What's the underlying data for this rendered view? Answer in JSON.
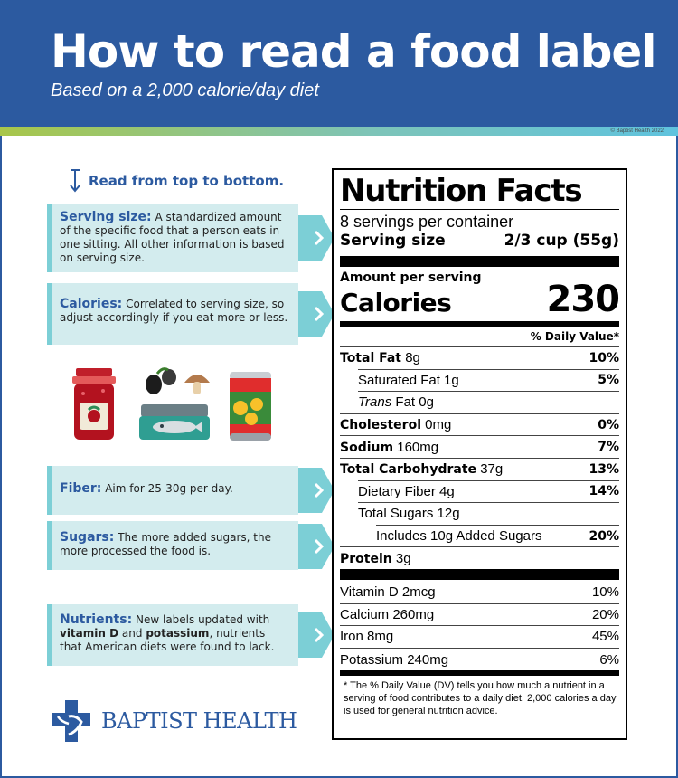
{
  "header": {
    "title": "How to read a food label",
    "subtitle": "Based on a 2,000 calorie/day diet",
    "copyright": "© Baptist Health 2022",
    "background_color": "#2c5aa0"
  },
  "guide": {
    "read_hint": "Read from top to bottom.",
    "serving": {
      "heading": "Serving size:",
      "text": "A standardized amount of the specific food that a person eats in one sitting. All other information is based on serving size."
    },
    "calories": {
      "heading": "Calories:",
      "text": "Correlated to serving size, so adjust accordingly if you eat more or less."
    },
    "fiber": {
      "heading": "Fiber:",
      "text": "Aim for 25-30g per day."
    },
    "sugars": {
      "heading": "Sugars:",
      "text": "The more added sugars, the more processed the food is."
    },
    "nutrients": {
      "heading": "Nutrients:",
      "text_1": "New labels updated with",
      "bold_1": "vitamin D",
      "text_2": "and",
      "bold_2": "potassium",
      "text_3": ", nutrients that American diets were found to lack."
    },
    "card_color": "#d3ecee",
    "accent_color": "#7ccfd6"
  },
  "illustration": {
    "icons": [
      "jam-jar-icon",
      "olive-icon",
      "mushroom-icon",
      "sardine-tin-icon",
      "canned-fruit-icon"
    ]
  },
  "logo": {
    "text": "BAPTIST HEALTH"
  },
  "nutrition": {
    "title": "Nutrition Facts",
    "servings_per_container": "8 servings per container",
    "serving_size_label": "Serving size",
    "serving_size_value": "2/3 cup (55g)",
    "amount_per_serving": "Amount per serving",
    "calories_label": "Calories",
    "calories_value": "230",
    "dv_header": "% Daily Value*",
    "rows": {
      "total_fat": {
        "label": "Total Fat",
        "amount": "8g",
        "dv": "10%"
      },
      "saturated_fat": {
        "label": "Saturated Fat 1g",
        "dv": "5%"
      },
      "trans_fat": {
        "label_italic": "Trans",
        "label_rest": "Fat 0g"
      },
      "cholesterol": {
        "label": "Cholesterol",
        "amount": "0mg",
        "dv": "0%"
      },
      "sodium": {
        "label": "Sodium",
        "amount": "160mg",
        "dv": "7%"
      },
      "total_carb": {
        "label": "Total Carbohydrate",
        "amount": "37g",
        "dv": "13%"
      },
      "dietary_fiber": {
        "label": "Dietary Fiber 4g",
        "dv": "14%"
      },
      "total_sugars": {
        "label": "Total Sugars 12g"
      },
      "added_sugars": {
        "label": "Includes 10g Added Sugars",
        "dv": "20%"
      },
      "protein": {
        "label": "Protein",
        "amount": "3g"
      }
    },
    "vitamins": [
      {
        "label": "Vitamin D 2mcg",
        "dv": "10%"
      },
      {
        "label": "Calcium 260mg",
        "dv": "20%"
      },
      {
        "label": "Iron 8mg",
        "dv": "45%"
      },
      {
        "label": "Potassium 240mg",
        "dv": "6%"
      }
    ],
    "footnote": "* The % Daily Value (DV) tells you how much a nutrient in a serving of food contributes to a daily diet. 2,000 calories a day is used for general nutrition advice."
  }
}
